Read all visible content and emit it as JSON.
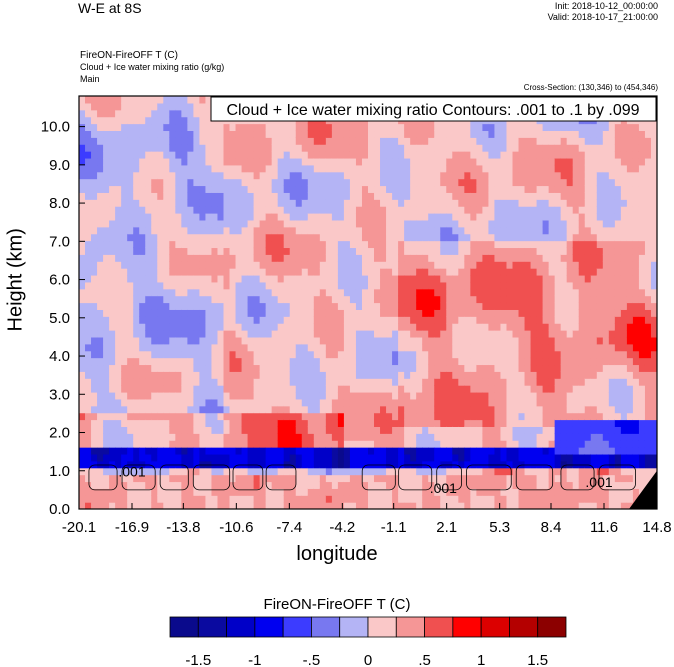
{
  "header": {
    "title": "W-E at 8S",
    "init": "Init: 2018-10-12_00:00:00",
    "valid": "Valid: 2018-10-17_21:00:00",
    "field": "FireON-FireOFF T   (C)",
    "contour_field": "Cloud + Ice water mixing ratio   (g/kg)",
    "domain": "Main",
    "cross_section": "Cross-Section: (130,346) to (454,346)"
  },
  "chart_data": {
    "type": "heatmap",
    "title": "W-E at 8S",
    "xlabel": "longitude",
    "ylabel": "Height (km)",
    "xlim": [
      -20.1,
      14.8
    ],
    "ylim": [
      0.0,
      10.8
    ],
    "x_ticks": [
      "-20.1",
      "-16.9",
      "-13.8",
      "-10.6",
      "-7.4",
      "-4.2",
      "-1.1",
      "2.1",
      "5.3",
      "8.4",
      "11.6",
      "14.8"
    ],
    "y_ticks": [
      "0.0",
      "1.0",
      "2.0",
      "3.0",
      "4.0",
      "5.0",
      "6.0",
      "7.0",
      "8.0",
      "9.0",
      "10.0"
    ],
    "contour_info": "Cloud + Ice water mixing ratio Contours: .001 to .1 by .099",
    "contour_labels": [
      ".001",
      ".001",
      ".001"
    ],
    "colorbar": {
      "title": "FireON-FireOFF T  (C)",
      "tick_labels": [
        "-1.5",
        "-1",
        "-.5",
        "0",
        ".5",
        "1",
        "1.5"
      ],
      "colors": [
        "#0a0a8c",
        "#0a0aa0",
        "#0000c8",
        "#0000f0",
        "#3c3cff",
        "#7878f0",
        "#b4b4f5",
        "#fac8c8",
        "#f59696",
        "#f05050",
        "#ff0000",
        "#dc0000",
        "#b40000",
        "#8c0000"
      ]
    }
  }
}
